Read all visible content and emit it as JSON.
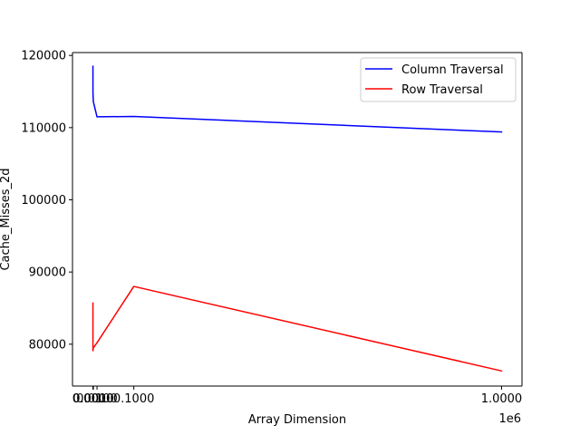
{
  "chart_data": {
    "type": "line",
    "title": "",
    "xlabel": "Array Dimension",
    "ylabel": "Cache_Misses_2d",
    "x_offset_text": "1e6",
    "xlim": [
      -50000,
      1050000
    ],
    "ylim": [
      74200,
      120400
    ],
    "x_ticks": [
      {
        "value": 0,
        "label": "0.0000"
      },
      {
        "value": 1000,
        "label": "0.0010"
      },
      {
        "value": 10000,
        "label": "0.0100"
      },
      {
        "value": 100000,
        "label": "0.1000"
      },
      {
        "value": 1000000,
        "label": "1.0000"
      }
    ],
    "y_ticks": [
      {
        "value": 80000,
        "label": "80000"
      },
      {
        "value": 90000,
        "label": "90000"
      },
      {
        "value": 100000,
        "label": "100000"
      },
      {
        "value": 110000,
        "label": "110000"
      },
      {
        "value": 120000,
        "label": "120000"
      }
    ],
    "x": [
      10,
      100,
      1000,
      10000,
      100000,
      1000000
    ],
    "series": [
      {
        "name": "Column Traversal",
        "color": "#0000ff",
        "values": [
          118500,
          114800,
          113600,
          111500,
          111550,
          109400
        ]
      },
      {
        "name": "Row Traversal",
        "color": "#ff0000",
        "values": [
          85700,
          79100,
          79500,
          80200,
          88000,
          76300
        ]
      }
    ],
    "legend_position": "top-right",
    "grid": false
  }
}
